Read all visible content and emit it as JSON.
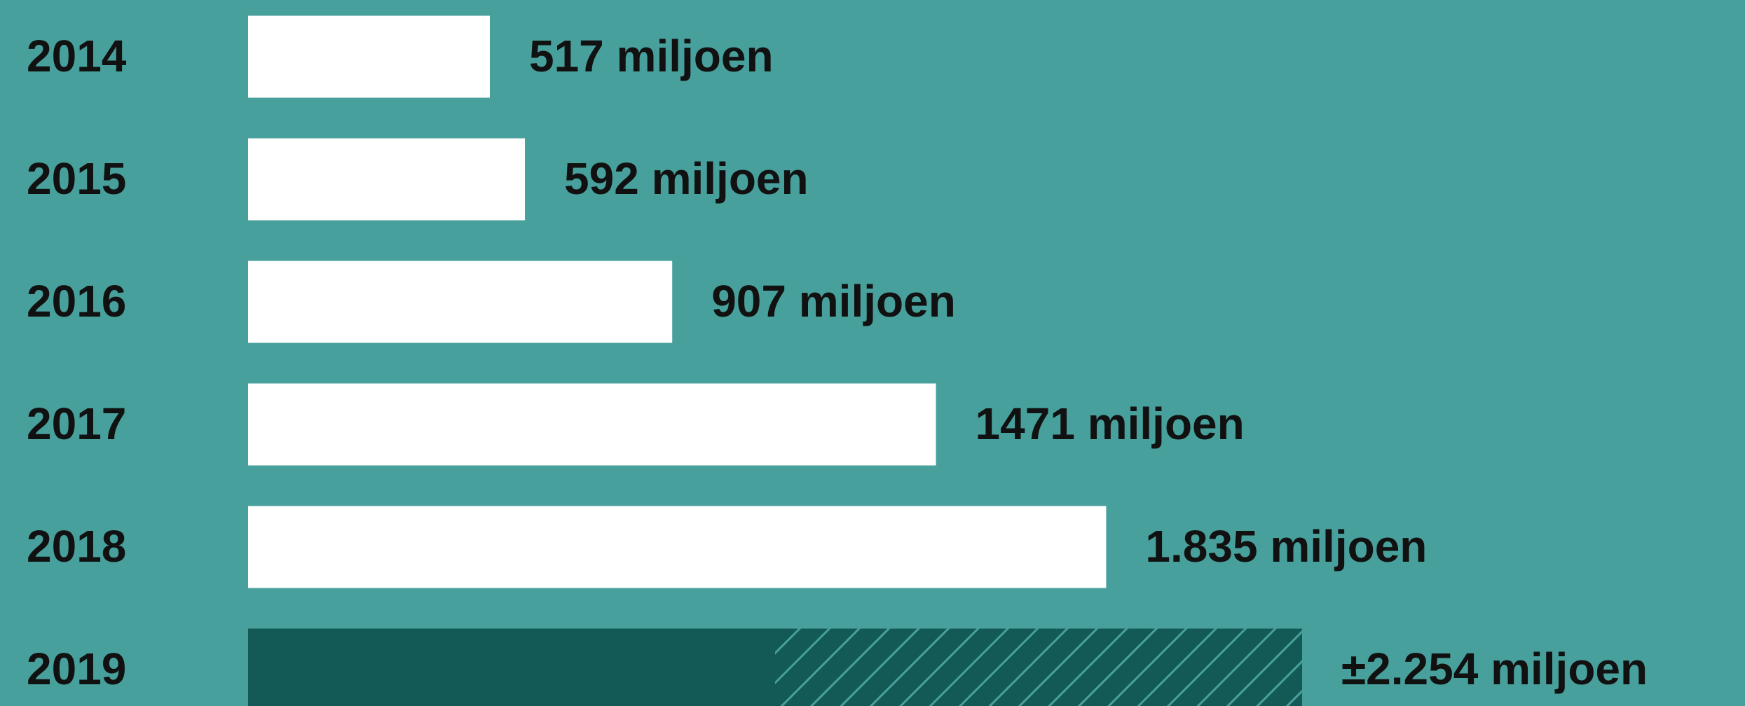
{
  "chart_data": {
    "type": "bar",
    "orientation": "horizontal",
    "categories": [
      "2014",
      "2015",
      "2016",
      "2017",
      "2018",
      "2019"
    ],
    "values": [
      517,
      592,
      907,
      1471,
      1835,
      2254
    ],
    "value_labels": [
      "517 miljoen",
      "592 miljoen",
      "907 miljoen",
      "1471 miljoen",
      "1.835 miljoen",
      "±2.254 miljoen"
    ],
    "colors": [
      "#ffffff",
      "#ffffff",
      "#ffffff",
      "#ffffff",
      "#ffffff",
      "#135a57"
    ],
    "hatched": [
      false,
      false,
      false,
      false,
      false,
      true
    ],
    "hatch_color": "#48a09c"
  }
}
